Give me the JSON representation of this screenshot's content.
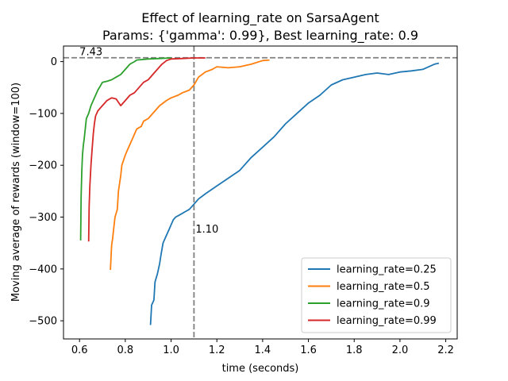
{
  "chart_data": {
    "type": "line",
    "title": "Effect of learning_rate on SarsaAgent",
    "subtitle": "Params: {'gamma': 0.99}, Best learning_rate: 0.9",
    "xlabel": "time (seconds)",
    "ylabel": "Moving average of rewards (window=100)",
    "xlim": [
      0.53,
      2.25
    ],
    "ylim": [
      -535,
      30
    ],
    "xticks": [
      {
        "value": 0.6,
        "label": "0.6"
      },
      {
        "value": 0.8,
        "label": "0.8"
      },
      {
        "value": 1.0,
        "label": "1.0"
      },
      {
        "value": 1.2,
        "label": "1.2"
      },
      {
        "value": 1.4,
        "label": "1.4"
      },
      {
        "value": 1.6,
        "label": "1.6"
      },
      {
        "value": 1.8,
        "label": "1.8"
      },
      {
        "value": 2.0,
        "label": "2.0"
      },
      {
        "value": 2.2,
        "label": "2.2"
      }
    ],
    "yticks": [
      {
        "value": 0,
        "label": "0"
      },
      {
        "value": -100,
        "label": "−100"
      },
      {
        "value": -200,
        "label": "−200"
      },
      {
        "value": -300,
        "label": "−300"
      },
      {
        "value": -400,
        "label": "−400"
      },
      {
        "value": -500,
        "label": "−500"
      }
    ],
    "grid": false,
    "legend_position": "lower-right",
    "reference_lines": {
      "horizontal": {
        "y": 7.43,
        "label": "7.43",
        "color": "#808080"
      },
      "vertical": {
        "x": 1.1,
        "label": "1.10",
        "color": "#808080"
      }
    },
    "series": [
      {
        "name": "learning_rate=0.25",
        "color": "#1f77b4",
        "points": [
          [
            0.91,
            -508
          ],
          [
            0.915,
            -470
          ],
          [
            0.925,
            -460
          ],
          [
            0.93,
            -425
          ],
          [
            0.94,
            -410
          ],
          [
            0.95,
            -390
          ],
          [
            0.955,
            -375
          ],
          [
            0.965,
            -350
          ],
          [
            0.975,
            -340
          ],
          [
            0.985,
            -330
          ],
          [
            0.995,
            -320
          ],
          [
            1.0,
            -315
          ],
          [
            1.01,
            -305
          ],
          [
            1.02,
            -300
          ],
          [
            1.04,
            -295
          ],
          [
            1.06,
            -290
          ],
          [
            1.08,
            -285
          ],
          [
            1.1,
            -275
          ],
          [
            1.12,
            -265
          ],
          [
            1.15,
            -255
          ],
          [
            1.2,
            -240
          ],
          [
            1.25,
            -225
          ],
          [
            1.3,
            -210
          ],
          [
            1.35,
            -185
          ],
          [
            1.4,
            -165
          ],
          [
            1.45,
            -145
          ],
          [
            1.5,
            -120
          ],
          [
            1.55,
            -100
          ],
          [
            1.6,
            -80
          ],
          [
            1.65,
            -65
          ],
          [
            1.7,
            -45
          ],
          [
            1.75,
            -35
          ],
          [
            1.8,
            -30
          ],
          [
            1.85,
            -25
          ],
          [
            1.9,
            -22
          ],
          [
            1.95,
            -25
          ],
          [
            2.0,
            -20
          ],
          [
            2.05,
            -18
          ],
          [
            2.1,
            -15
          ],
          [
            2.15,
            -5
          ],
          [
            2.17,
            -3
          ]
        ]
      },
      {
        "name": "learning_rate=0.5",
        "color": "#ff7f0e",
        "points": [
          [
            0.735,
            -402
          ],
          [
            0.74,
            -355
          ],
          [
            0.745,
            -340
          ],
          [
            0.75,
            -320
          ],
          [
            0.755,
            -300
          ],
          [
            0.765,
            -285
          ],
          [
            0.77,
            -250
          ],
          [
            0.78,
            -220
          ],
          [
            0.785,
            -200
          ],
          [
            0.8,
            -180
          ],
          [
            0.81,
            -170
          ],
          [
            0.82,
            -160
          ],
          [
            0.83,
            -150
          ],
          [
            0.84,
            -140
          ],
          [
            0.85,
            -130
          ],
          [
            0.87,
            -125
          ],
          [
            0.88,
            -115
          ],
          [
            0.9,
            -110
          ],
          [
            0.92,
            -100
          ],
          [
            0.95,
            -85
          ],
          [
            0.98,
            -75
          ],
          [
            1.0,
            -70
          ],
          [
            1.03,
            -65
          ],
          [
            1.05,
            -60
          ],
          [
            1.08,
            -55
          ],
          [
            1.1,
            -45
          ],
          [
            1.12,
            -30
          ],
          [
            1.15,
            -20
          ],
          [
            1.18,
            -15
          ],
          [
            1.2,
            -10
          ],
          [
            1.25,
            -12
          ],
          [
            1.3,
            -10
          ],
          [
            1.35,
            -5
          ],
          [
            1.4,
            2
          ],
          [
            1.43,
            3
          ]
        ]
      },
      {
        "name": "learning_rate=0.9",
        "color": "#2ca02c",
        "points": [
          [
            0.605,
            -345
          ],
          [
            0.607,
            -260
          ],
          [
            0.61,
            -210
          ],
          [
            0.613,
            -180
          ],
          [
            0.617,
            -160
          ],
          [
            0.62,
            -150
          ],
          [
            0.625,
            -130
          ],
          [
            0.63,
            -110
          ],
          [
            0.64,
            -100
          ],
          [
            0.65,
            -85
          ],
          [
            0.66,
            -75
          ],
          [
            0.67,
            -65
          ],
          [
            0.68,
            -55
          ],
          [
            0.69,
            -48
          ],
          [
            0.7,
            -40
          ],
          [
            0.72,
            -38
          ],
          [
            0.74,
            -35
          ],
          [
            0.76,
            -30
          ],
          [
            0.78,
            -25
          ],
          [
            0.8,
            -15
          ],
          [
            0.82,
            -5
          ],
          [
            0.84,
            0
          ],
          [
            0.85,
            3
          ],
          [
            0.9,
            5
          ],
          [
            0.95,
            6
          ],
          [
            1.0,
            7
          ]
        ]
      },
      {
        "name": "learning_rate=0.99",
        "color": "#d62728",
        "points": [
          [
            0.64,
            -347
          ],
          [
            0.642,
            -280
          ],
          [
            0.645,
            -240
          ],
          [
            0.65,
            -200
          ],
          [
            0.655,
            -170
          ],
          [
            0.66,
            -140
          ],
          [
            0.665,
            -120
          ],
          [
            0.67,
            -105
          ],
          [
            0.68,
            -95
          ],
          [
            0.7,
            -85
          ],
          [
            0.72,
            -75
          ],
          [
            0.74,
            -70
          ],
          [
            0.76,
            -72
          ],
          [
            0.78,
            -85
          ],
          [
            0.8,
            -75
          ],
          [
            0.82,
            -65
          ],
          [
            0.84,
            -60
          ],
          [
            0.86,
            -50
          ],
          [
            0.88,
            -40
          ],
          [
            0.9,
            -35
          ],
          [
            0.92,
            -25
          ],
          [
            0.94,
            -15
          ],
          [
            0.96,
            -5
          ],
          [
            0.98,
            2
          ],
          [
            1.0,
            5
          ],
          [
            1.05,
            6
          ],
          [
            1.1,
            7
          ],
          [
            1.15,
            7
          ]
        ]
      }
    ]
  }
}
